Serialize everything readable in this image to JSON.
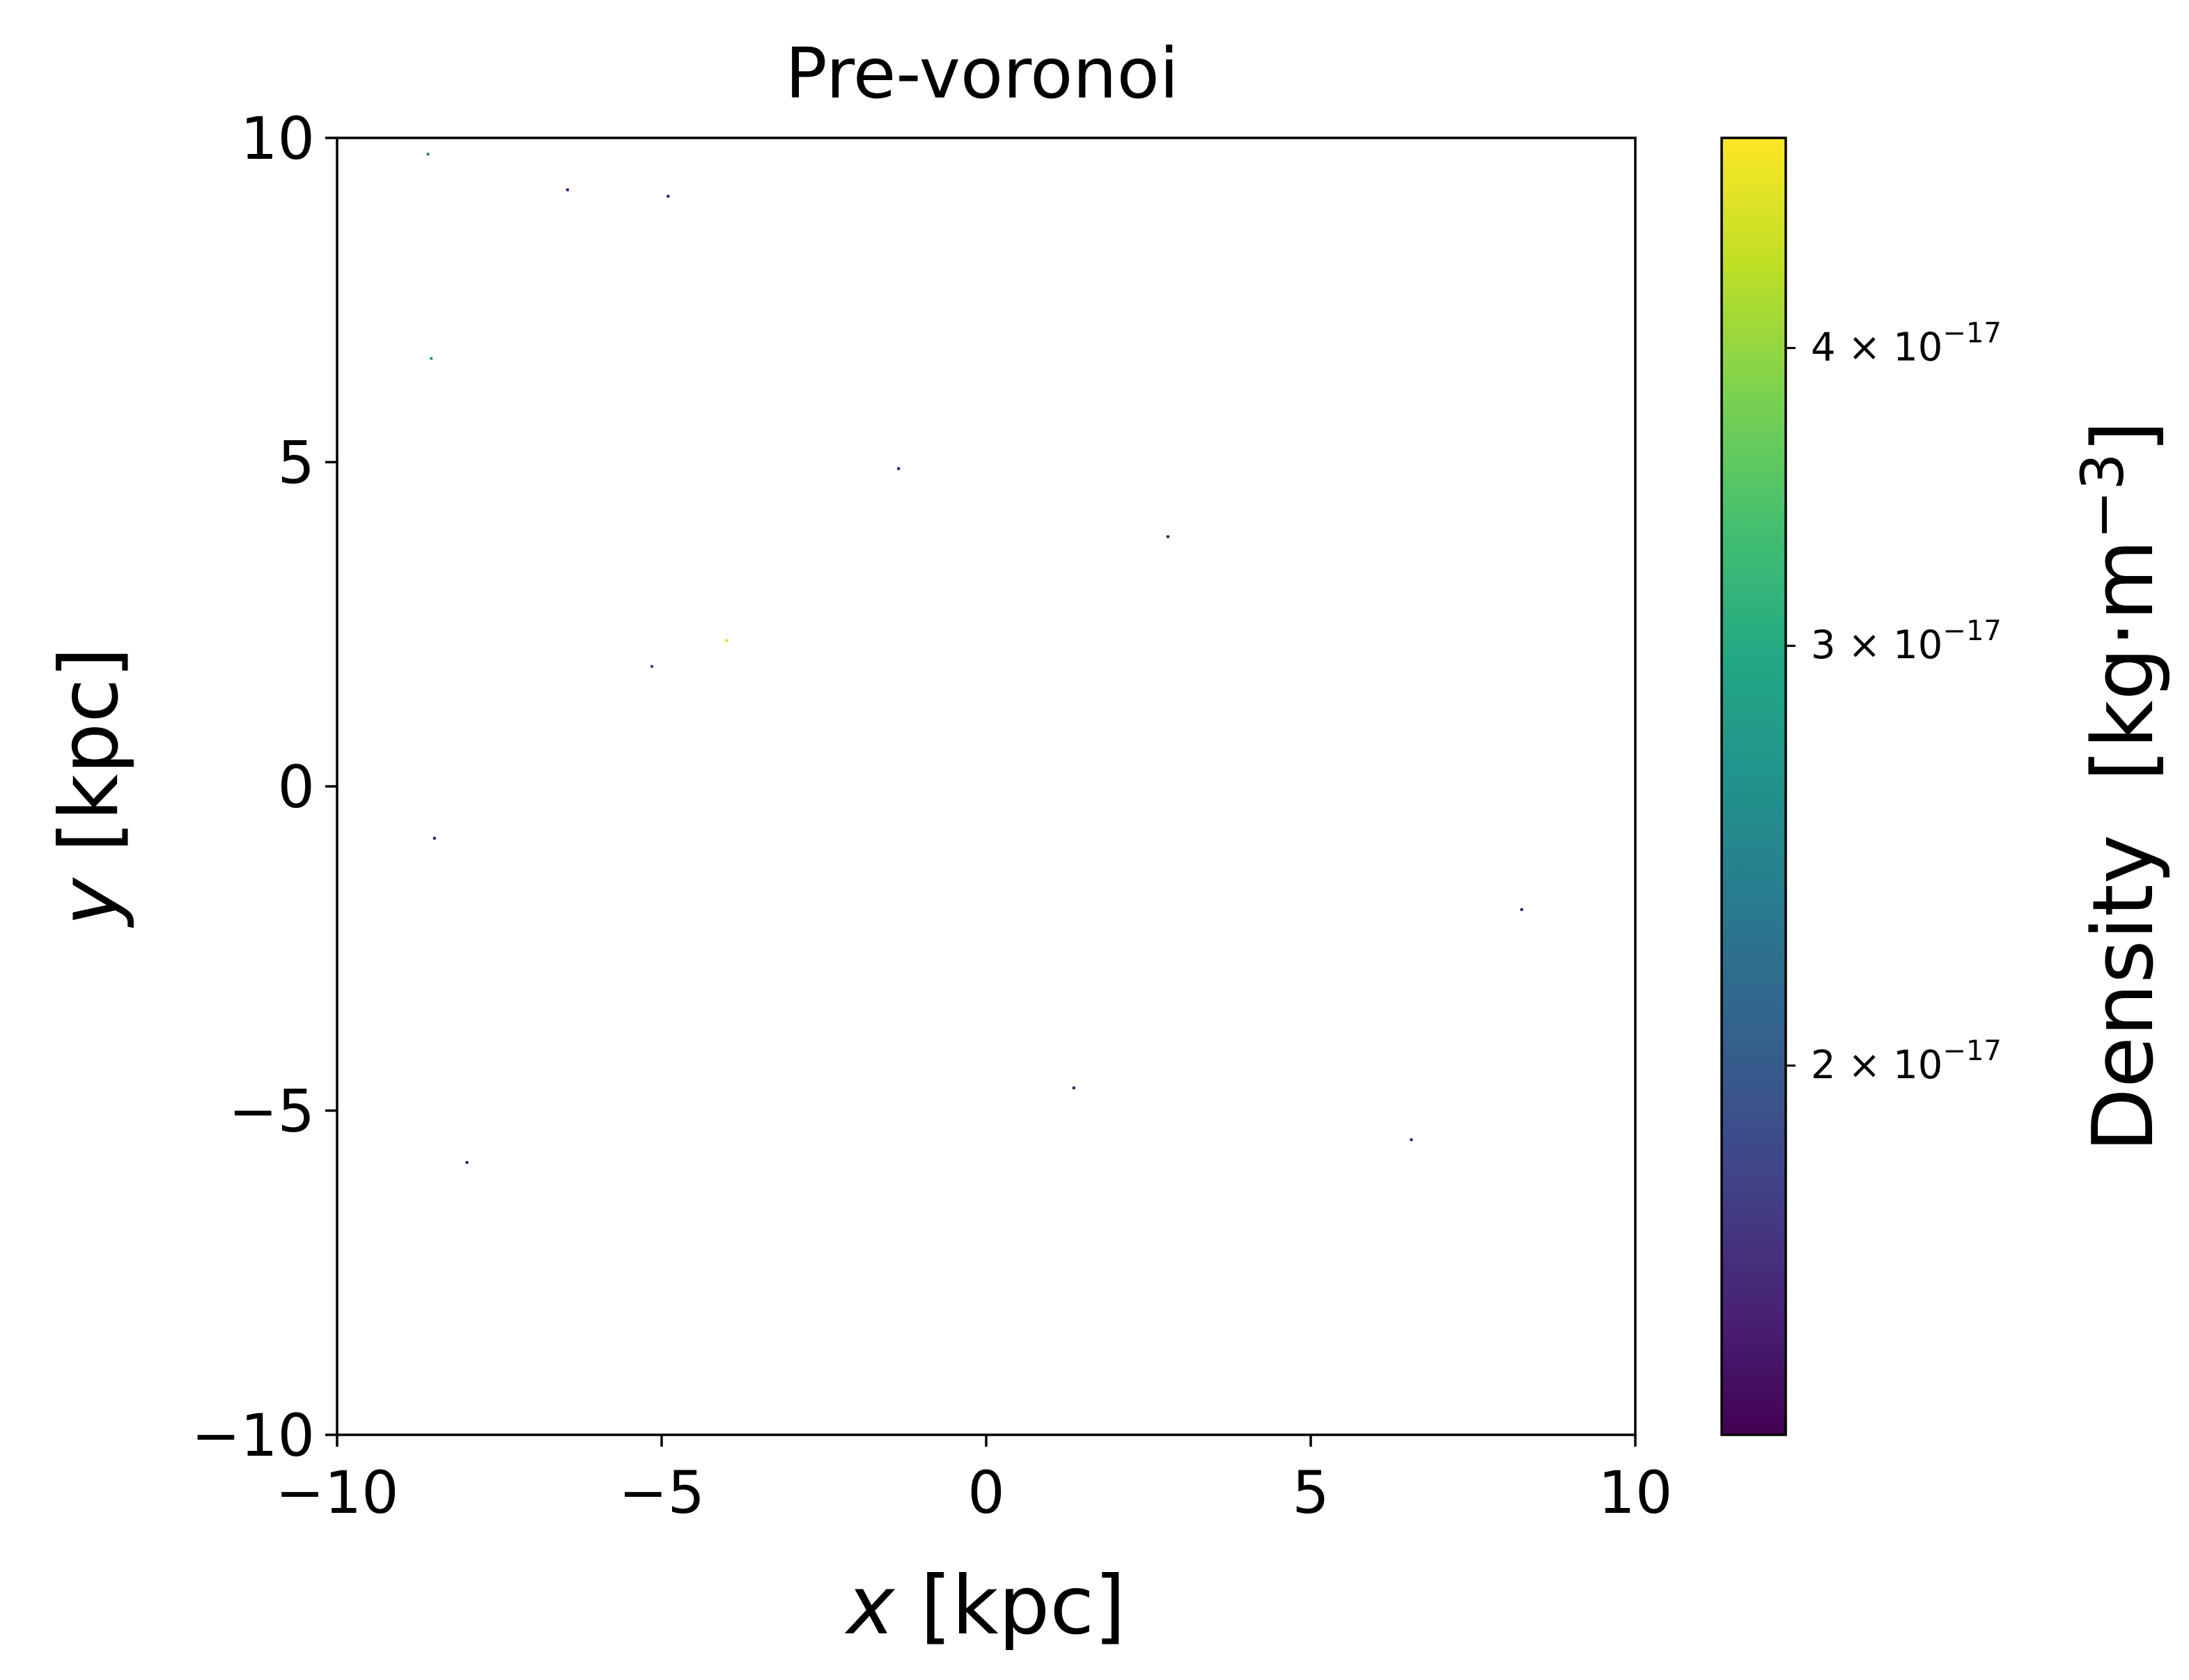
{
  "chart_data": {
    "type": "scatter",
    "title": "Pre-voronoi",
    "xlabel_var": "x",
    "xlabel_unit": " [kpc]",
    "ylabel_var": "y",
    "ylabel_unit": " [kpc]",
    "xlim": [
      -10,
      10
    ],
    "ylim": [
      -10,
      10
    ],
    "xticks": [
      -10,
      -5,
      0,
      5,
      10
    ],
    "yticks": [
      -10,
      -5,
      0,
      5,
      10
    ],
    "xtick_labels": [
      "−10",
      "−5",
      "0",
      "5",
      "10"
    ],
    "ytick_labels": [
      "−10",
      "−5",
      "0",
      "5",
      "10"
    ],
    "grid": false,
    "colorbar": {
      "label_prefix": "Density  [kg·m",
      "label_exp": "−3",
      "label_suffix": "]",
      "colormap": "viridis",
      "scale": "log",
      "range": [
        1.4e-17,
        4.9e-17
      ],
      "ticks": [
        {
          "value": 2e-17,
          "mantissa": "2",
          "times": "×",
          "base": "10",
          "exp": "−17"
        },
        {
          "value": 3e-17,
          "mantissa": "3",
          "times": "×",
          "base": "10",
          "exp": "−17"
        },
        {
          "value": 4e-17,
          "mantissa": "4",
          "times": "×",
          "base": "10",
          "exp": "−17"
        }
      ]
    },
    "points": [
      {
        "x": -8.6,
        "y": 9.75,
        "density": 2.6e-17
      },
      {
        "x": -6.45,
        "y": 9.2,
        "density": 1.5e-17
      },
      {
        "x": -4.9,
        "y": 9.1,
        "density": 1.5e-17
      },
      {
        "x": -8.55,
        "y": 6.6,
        "density": 2.8e-17
      },
      {
        "x": -1.35,
        "y": 4.9,
        "density": 1.5e-17
      },
      {
        "x": 2.8,
        "y": 3.85,
        "density": 1.5e-17
      },
      {
        "x": -5.15,
        "y": 1.85,
        "density": 1.8e-17
      },
      {
        "x": -4.0,
        "y": 2.25,
        "density": 4.6e-17
      },
      {
        "x": -8.5,
        "y": -0.8,
        "density": 1.5e-17
      },
      {
        "x": 8.25,
        "y": -1.9,
        "density": 1.5e-17
      },
      {
        "x": 1.35,
        "y": -4.65,
        "density": 1.5e-17
      },
      {
        "x": 6.55,
        "y": -5.45,
        "density": 1.5e-17
      },
      {
        "x": -8.0,
        "y": -5.8,
        "density": 1.5e-17
      }
    ]
  }
}
